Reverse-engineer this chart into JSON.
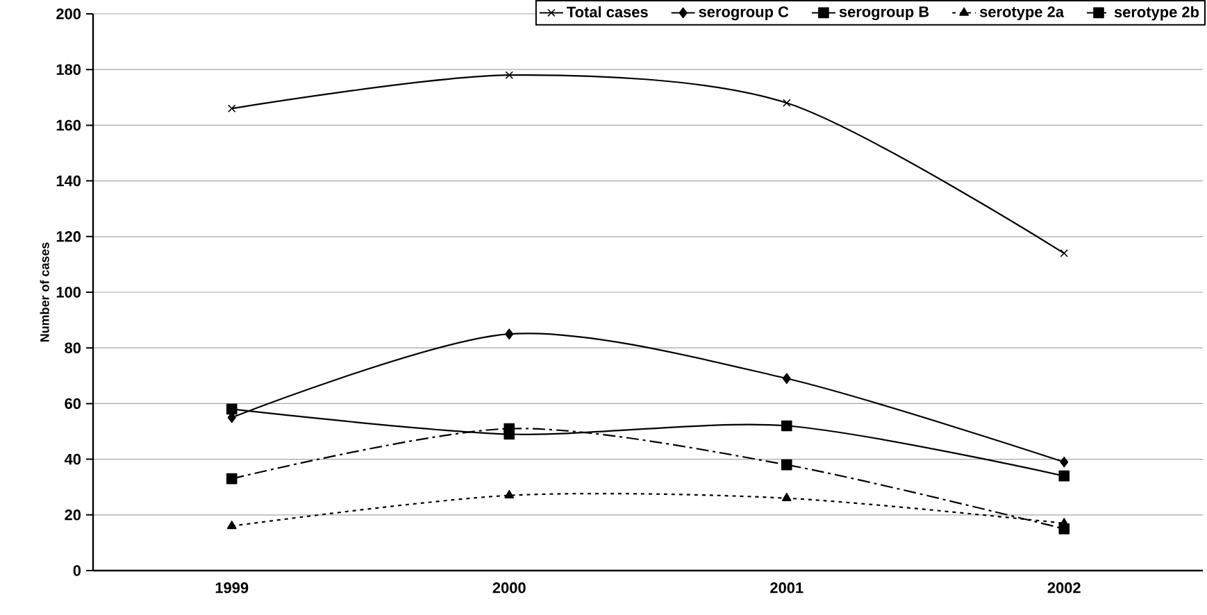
{
  "chart_data": {
    "type": "line",
    "ylabel": "Number of cases",
    "categories": [
      "1999",
      "2000",
      "2001",
      "2002"
    ],
    "ylim": [
      0,
      200
    ],
    "yticks": [
      0,
      20,
      40,
      60,
      80,
      100,
      120,
      140,
      160,
      180,
      200
    ],
    "grid": "y",
    "legend": "top",
    "series": [
      {
        "name": "Total cases",
        "color": "#000000",
        "values": [
          166,
          178,
          168,
          114
        ],
        "marker": "cross",
        "line_style": "solid"
      },
      {
        "name": "serogroup C",
        "color": "#000000",
        "values": [
          55,
          85,
          69,
          39
        ],
        "marker": "diamond",
        "line_style": "solid"
      },
      {
        "name": "serogroup B",
        "color": "#000000",
        "values": [
          58,
          49,
          52,
          34
        ],
        "marker": "square",
        "line_style": "solid"
      },
      {
        "name": "serotype 2a",
        "color": "#000000",
        "values": [
          16,
          27,
          26,
          17
        ],
        "marker": "triangle",
        "line_style": "dotted"
      },
      {
        "name": "serotype 2b",
        "color": "#000000",
        "values": [
          33,
          51,
          38,
          15
        ],
        "marker": "square",
        "line_style": "dashed"
      }
    ]
  }
}
